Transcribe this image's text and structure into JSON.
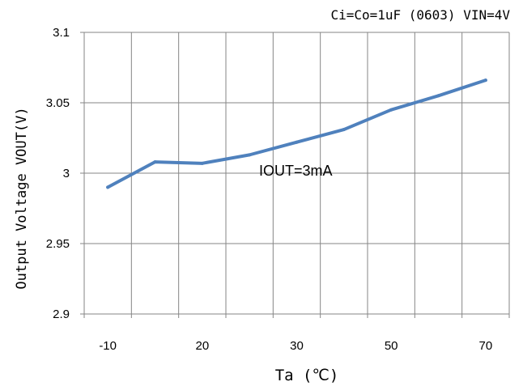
{
  "chart_data": {
    "type": "line",
    "title": "Ci=Co=1uF (0603) VIN=4V",
    "xlabel": "Ta (℃)",
    "ylabel": "Output Voltage VOUT(V)",
    "annotation": "IOUT=3mA",
    "x_tick_labels": [
      "-10",
      "20",
      "30",
      "50",
      "70"
    ],
    "y_tick_labels": [
      "3.1",
      "3.05",
      "3",
      "2.95",
      "2.9"
    ],
    "y_ticks": [
      3.1,
      3.05,
      3.0,
      2.95,
      2.9
    ],
    "ylim": [
      2.9,
      3.1
    ],
    "grid": true,
    "line_color": "#4f81bd",
    "series": [
      {
        "x": [
          -10,
          0,
          10,
          20,
          30,
          40,
          50,
          60,
          70
        ],
        "values": [
          2.99,
          3.008,
          3.007,
          3.013,
          3.022,
          3.031,
          3.045,
          3.055,
          3.066
        ]
      }
    ]
  }
}
